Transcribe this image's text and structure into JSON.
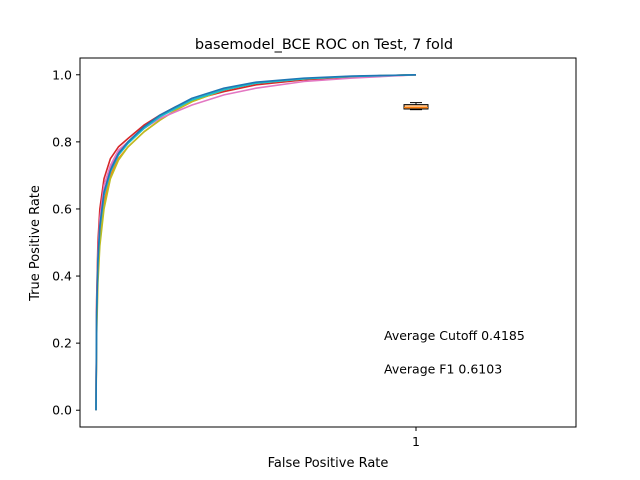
{
  "chart_data": {
    "type": "line",
    "title": "basemodel_BCE ROC on Test, 7 fold",
    "xlabel": "False Positive Rate",
    "ylabel": "True Positive Rate",
    "xlim": [
      -0.05,
      1.5
    ],
    "ylim": [
      -0.05,
      1.05
    ],
    "x_ticks": [
      {
        "value": 1,
        "label": "1"
      }
    ],
    "y_ticks": [
      {
        "value": 0.0,
        "label": "0.0"
      },
      {
        "value": 0.2,
        "label": "0.2"
      },
      {
        "value": 0.4,
        "label": "0.4"
      },
      {
        "value": 0.6,
        "label": "0.6"
      },
      {
        "value": 0.8,
        "label": "0.8"
      },
      {
        "value": 1.0,
        "label": "1.0"
      }
    ],
    "grid": false,
    "series": [
      {
        "color": "#9467bd",
        "x": [
          0.0,
          0.002,
          0.006,
          0.012,
          0.025,
          0.045,
          0.07,
          0.1,
          0.15,
          0.2,
          0.25,
          0.3,
          0.4,
          0.5,
          0.65,
          0.8,
          1.0
        ],
        "y": [
          0.0,
          0.3,
          0.45,
          0.55,
          0.65,
          0.72,
          0.77,
          0.8,
          0.845,
          0.875,
          0.9,
          0.925,
          0.955,
          0.975,
          0.988,
          0.995,
          1.0
        ]
      },
      {
        "color": "#d62728",
        "x": [
          0.0,
          0.002,
          0.006,
          0.012,
          0.025,
          0.045,
          0.07,
          0.1,
          0.15,
          0.2,
          0.25,
          0.3,
          0.4,
          0.5,
          0.65,
          0.8,
          1.0
        ],
        "y": [
          0.0,
          0.33,
          0.5,
          0.6,
          0.69,
          0.75,
          0.785,
          0.81,
          0.85,
          0.88,
          0.905,
          0.925,
          0.95,
          0.97,
          0.985,
          0.993,
          1.0
        ]
      },
      {
        "color": "#ff7f0e",
        "x": [
          0.0,
          0.002,
          0.006,
          0.012,
          0.025,
          0.045,
          0.07,
          0.1,
          0.15,
          0.2,
          0.25,
          0.3,
          0.4,
          0.5,
          0.65,
          0.8,
          1.0
        ],
        "y": [
          0.0,
          0.26,
          0.42,
          0.52,
          0.62,
          0.7,
          0.75,
          0.785,
          0.83,
          0.865,
          0.895,
          0.92,
          0.955,
          0.975,
          0.988,
          0.995,
          1.0
        ]
      },
      {
        "color": "#bcbd22",
        "x": [
          0.0,
          0.002,
          0.006,
          0.012,
          0.025,
          0.045,
          0.07,
          0.1,
          0.15,
          0.2,
          0.25,
          0.3,
          0.4,
          0.5,
          0.65,
          0.8,
          1.0
        ],
        "y": [
          0.0,
          0.22,
          0.38,
          0.49,
          0.6,
          0.69,
          0.745,
          0.785,
          0.83,
          0.865,
          0.895,
          0.92,
          0.955,
          0.975,
          0.988,
          0.995,
          1.0
        ]
      },
      {
        "color": "#e377c2",
        "x": [
          0.0,
          0.002,
          0.006,
          0.012,
          0.025,
          0.045,
          0.07,
          0.1,
          0.15,
          0.2,
          0.25,
          0.3,
          0.4,
          0.5,
          0.65,
          0.8,
          1.0
        ],
        "y": [
          0.0,
          0.31,
          0.47,
          0.57,
          0.67,
          0.73,
          0.775,
          0.8,
          0.84,
          0.87,
          0.89,
          0.91,
          0.94,
          0.96,
          0.98,
          0.99,
          1.0
        ]
      },
      {
        "color": "#17becf",
        "x": [
          0.0,
          0.002,
          0.006,
          0.012,
          0.025,
          0.045,
          0.07,
          0.1,
          0.15,
          0.2,
          0.25,
          0.3,
          0.4,
          0.5,
          0.65,
          0.8,
          1.0
        ],
        "y": [
          0.0,
          0.28,
          0.44,
          0.54,
          0.64,
          0.71,
          0.76,
          0.795,
          0.84,
          0.875,
          0.9,
          0.925,
          0.955,
          0.975,
          0.988,
          0.995,
          1.0
        ]
      },
      {
        "color": "#1f77b4",
        "x": [
          0.0,
          0.002,
          0.006,
          0.012,
          0.025,
          0.045,
          0.07,
          0.1,
          0.15,
          0.2,
          0.25,
          0.3,
          0.4,
          0.5,
          0.65,
          0.8,
          1.0
        ],
        "y": [
          0.0,
          0.29,
          0.45,
          0.55,
          0.65,
          0.715,
          0.765,
          0.8,
          0.845,
          0.88,
          0.905,
          0.93,
          0.96,
          0.978,
          0.99,
          0.996,
          1.0
        ]
      }
    ],
    "boxplot": {
      "position": 1,
      "whisker_low": 0.896,
      "q1": 0.898,
      "median": 0.902,
      "q3": 0.911,
      "whisker_high": 0.917,
      "box_color": "#ffbf80"
    },
    "annotations": [
      {
        "text": "Average Cutoff 0.4185",
        "x": 0.9,
        "y": 0.21
      },
      {
        "text": "Average F1 0.6103",
        "x": 0.9,
        "y": 0.11
      }
    ]
  }
}
